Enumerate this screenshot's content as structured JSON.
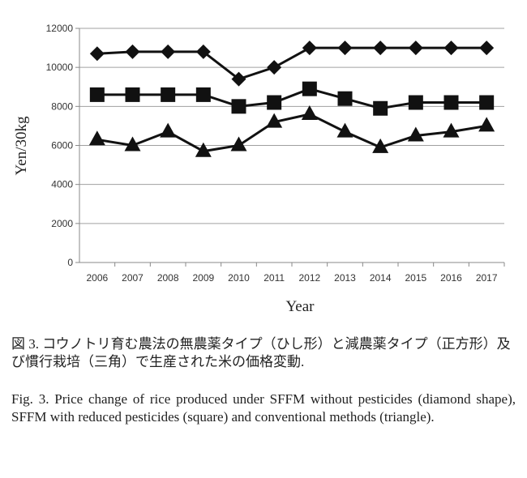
{
  "chart_data": {
    "type": "line",
    "title": "",
    "xlabel": "Year",
    "ylabel": "Yen/30kg",
    "ylim": [
      0,
      12000
    ],
    "yticks": [
      0,
      2000,
      4000,
      6000,
      8000,
      10000,
      12000
    ],
    "grid": true,
    "categories": [
      "2006",
      "2007",
      "2008",
      "2009",
      "2010",
      "2011",
      "2012",
      "2013",
      "2014",
      "2015",
      "2016",
      "2017"
    ],
    "series": [
      {
        "name": "SFFM without pesticides (diamond)",
        "marker": "diamond",
        "values": [
          10700,
          10800,
          10800,
          10800,
          9400,
          10000,
          11000,
          11000,
          11000,
          11000,
          11000,
          11000
        ]
      },
      {
        "name": "SFFM with reduced pesticides (square)",
        "marker": "square",
        "values": [
          8600,
          8600,
          8600,
          8600,
          8000,
          8200,
          8900,
          8400,
          7900,
          8200,
          8200,
          8200
        ]
      },
      {
        "name": "Conventional methods (triangle)",
        "marker": "triangle",
        "values": [
          6300,
          6000,
          6700,
          5700,
          6000,
          7200,
          7600,
          6700,
          5900,
          6500,
          6700,
          7000
        ]
      }
    ],
    "colors": {
      "line": "#111111",
      "grid": "#a0a0a0"
    }
  },
  "caption": {
    "ja": "図 3.  コウノトリ育む農法の無農薬タイプ（ひし形）と減農薬タイプ（正方形）及び慣行栽培（三角）で生産された米の価格変動.",
    "en": "Fig. 3.   Price change of rice produced under SFFM without pesticides (diamond shape), SFFM with reduced pesticides (square) and conventional methods (triangle)."
  }
}
